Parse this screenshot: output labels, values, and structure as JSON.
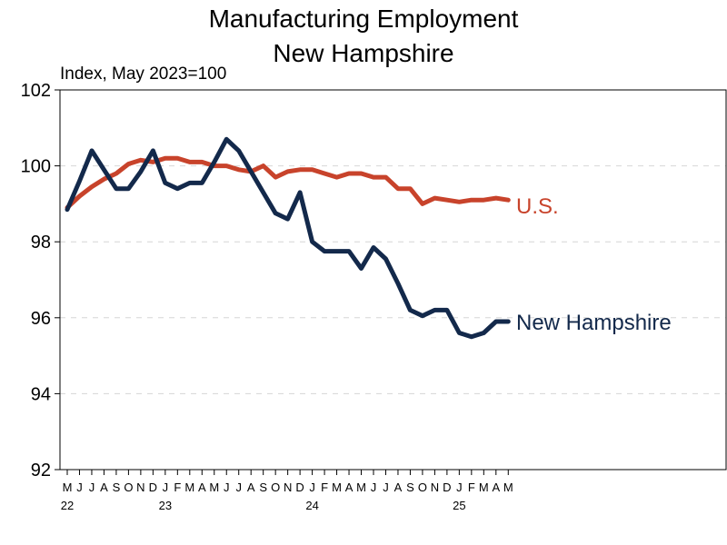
{
  "chart_data": {
    "type": "line",
    "title": "Manufacturing Employment",
    "title_line2": "New Hampshire",
    "ylabel": "Index, May 2023=100",
    "ylim": [
      92,
      102
    ],
    "yticks": [
      92,
      94,
      96,
      98,
      100,
      102
    ],
    "ytick_labels": [
      "92",
      "94",
      "96",
      "98",
      "100",
      "102"
    ],
    "x": [
      "2022-05",
      "2022-06",
      "2022-07",
      "2022-08",
      "2022-09",
      "2022-10",
      "2022-11",
      "2022-12",
      "2023-01",
      "2023-02",
      "2023-03",
      "2023-04",
      "2023-05",
      "2023-06",
      "2023-07",
      "2023-08",
      "2023-09",
      "2023-10",
      "2023-11",
      "2023-12",
      "2024-01",
      "2024-02",
      "2024-03",
      "2024-04",
      "2024-05",
      "2024-06",
      "2024-07",
      "2024-08",
      "2024-09",
      "2024-10",
      "2024-11",
      "2024-12",
      "2025-01",
      "2025-02",
      "2025-03",
      "2025-04",
      "2025-05"
    ],
    "month_labels": [
      "M",
      "J",
      "J",
      "A",
      "S",
      "O",
      "N",
      "D",
      "J",
      "F",
      "M",
      "A",
      "M",
      "J",
      "J",
      "A",
      "S",
      "O",
      "N",
      "D",
      "J",
      "F",
      "M",
      "A",
      "M",
      "J",
      "J",
      "A",
      "S",
      "O",
      "N",
      "D",
      "J",
      "F",
      "M",
      "A",
      "M"
    ],
    "year_labels": [
      {
        "label": "22",
        "index": 0
      },
      {
        "label": "23",
        "index": 8
      },
      {
        "label": "24",
        "index": 20
      },
      {
        "label": "25",
        "index": 32
      }
    ],
    "x_slots": 53,
    "series": [
      {
        "name": "U.S.",
        "color": "#c8432b",
        "values": [
          98.9,
          99.2,
          99.45,
          99.65,
          99.8,
          100.05,
          100.15,
          100.1,
          100.2,
          100.2,
          100.1,
          100.1,
          100.0,
          100.0,
          99.9,
          99.85,
          100.0,
          99.7,
          99.85,
          99.9,
          99.9,
          99.8,
          99.7,
          99.8,
          99.8,
          99.7,
          99.7,
          99.4,
          99.4,
          99.0,
          99.15,
          99.1,
          99.05,
          99.1,
          99.1,
          99.15,
          99.1
        ]
      },
      {
        "name": "New Hampshire",
        "color": "#13294b",
        "values": [
          98.85,
          99.6,
          100.4,
          99.9,
          99.4,
          99.4,
          99.85,
          100.4,
          99.55,
          99.4,
          99.55,
          99.55,
          100.1,
          100.7,
          100.4,
          99.85,
          99.3,
          98.75,
          98.6,
          99.3,
          98.0,
          97.75,
          97.75,
          97.75,
          97.3,
          97.85,
          97.55,
          96.9,
          96.2,
          96.05,
          96.2,
          96.2,
          95.6,
          95.5,
          95.6,
          95.9,
          95.9
        ]
      }
    ]
  }
}
